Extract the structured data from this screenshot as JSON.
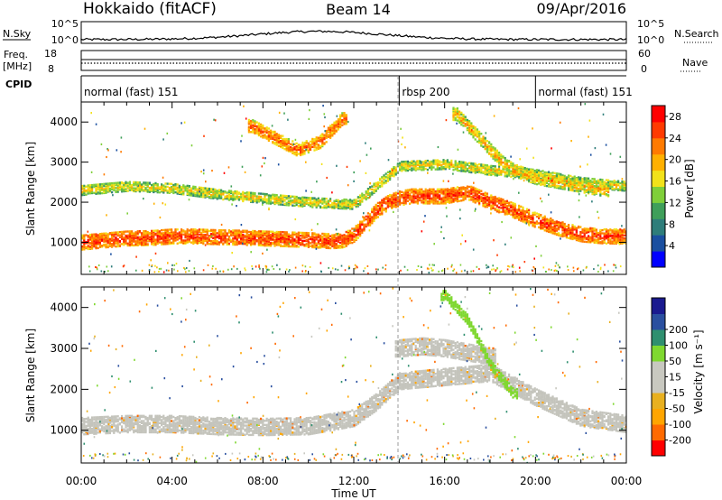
{
  "header": {
    "station": "Hokkaido (fitACF)",
    "beam": "Beam 14",
    "date": "09/Apr/2016"
  },
  "top_strip": {
    "nsky_label": "N.Sky",
    "nsearch_label": "N.Search",
    "left_ticks": [
      "10^5",
      "10^0"
    ],
    "right_ticks": [
      "10^5",
      "10^0"
    ],
    "freq_label": "Freq.",
    "freq_unit": "[MHz]",
    "freq_ticks": [
      "18",
      "8"
    ],
    "nave_label": "Nave",
    "nave_ticks": [
      "60",
      "0"
    ],
    "cpid_label": "CPID"
  },
  "cpid_segments": [
    {
      "label": "normal (fast) 151",
      "start": 0,
      "end": 14
    },
    {
      "label": "rbsp 200",
      "start": 14,
      "end": 20
    },
    {
      "label": "normal (fast) 151",
      "start": 20,
      "end": 24
    }
  ],
  "colors": {
    "power_scale": [
      "#0000ff",
      "#1a4fa0",
      "#2e7d7a",
      "#3f9f5a",
      "#7fcf3a",
      "#f2e21a",
      "#ffb000",
      "#ff7a00",
      "#ff3a00",
      "#ff0000"
    ],
    "velocity_scale": [
      "#ff0000",
      "#ff6a00",
      "#ffa500",
      "#e8b020",
      "#c8c8c0",
      "#c8c8c0",
      "#7fd830",
      "#2f8f6f",
      "#2a4f9f",
      "#1a1a8f"
    ],
    "ground_scatter": "#c4c4bc"
  },
  "chart_data": [
    {
      "type": "heatmap",
      "name": "power_panel",
      "title": "",
      "xlabel": "Time UT",
      "ylabel": "Slant Range [km]",
      "x_range_hours": [
        0,
        24
      ],
      "ylim": [
        200,
        4500
      ],
      "y_ticks": [
        1000,
        2000,
        3000,
        4000
      ],
      "x_ticks": [
        "00:00",
        "04:00",
        "08:00",
        "12:00",
        "16:00",
        "20:00",
        "00:00"
      ],
      "colorbar": {
        "label": "Power [dB]",
        "ticks": [
          4,
          8,
          12,
          16,
          20,
          24,
          28
        ],
        "range": [
          0,
          30
        ]
      },
      "bands": [
        {
          "t": [
            0,
            1,
            2,
            3,
            4,
            5,
            6,
            7,
            8,
            9,
            10,
            11,
            11.5,
            12,
            12.5,
            13,
            13.5,
            14,
            14.5,
            15,
            16,
            17,
            18,
            19,
            20,
            21,
            22,
            23,
            24
          ],
          "center_km": [
            1000,
            1050,
            1100,
            1110,
            1150,
            1150,
            1130,
            1120,
            1100,
            1080,
            1060,
            1030,
            1050,
            1200,
            1500,
            1800,
            2000,
            2100,
            2150,
            2150,
            2150,
            2250,
            2000,
            1800,
            1550,
            1350,
            1200,
            1150,
            1150
          ],
          "half_width_km": 180,
          "power_db": 24
        },
        {
          "t": [
            0,
            2,
            4,
            6,
            8,
            10,
            12,
            14,
            16,
            18,
            20,
            22,
            24
          ],
          "center_km": [
            2300,
            2400,
            2350,
            2200,
            2100,
            2000,
            1950,
            2900,
            2950,
            2800,
            2700,
            2500,
            2400
          ],
          "half_width_km": 120,
          "power_db": 16
        },
        {
          "t": [
            7.5,
            8.5,
            9.5,
            10.5,
            11.5
          ],
          "center_km": [
            3900,
            3600,
            3300,
            3500,
            4100
          ],
          "half_width_km": 150,
          "power_db": 22
        },
        {
          "t": [
            16.5,
            17,
            17.5,
            18,
            18.5,
            19,
            20,
            21,
            22,
            23
          ],
          "center_km": [
            4200,
            3900,
            3600,
            3300,
            3000,
            2800,
            2600,
            2500,
            2400,
            2300
          ],
          "half_width_km": 150,
          "power_db": 18
        }
      ]
    },
    {
      "type": "heatmap",
      "name": "velocity_panel",
      "title": "",
      "xlabel": "Time UT",
      "ylabel": "Slant Range [km]",
      "x_range_hours": [
        0,
        24
      ],
      "ylim": [
        200,
        4500
      ],
      "y_ticks": [
        1000,
        2000,
        3000,
        4000
      ],
      "x_ticks": [
        "00:00",
        "04:00",
        "08:00",
        "12:00",
        "16:00",
        "20:00",
        "00:00"
      ],
      "colorbar": {
        "label": "Velocity [m s⁻¹]",
        "ticks": [
          -200,
          -100,
          -50,
          -15,
          15,
          50,
          100,
          200
        ]
      },
      "bands": [
        {
          "t": [
            0,
            2,
            4,
            6,
            8,
            10,
            12,
            13,
            14,
            16,
            18,
            20,
            22,
            24
          ],
          "center_km": [
            1100,
            1150,
            1150,
            1100,
            1080,
            1100,
            1300,
            1700,
            2200,
            2300,
            2400,
            1800,
            1300,
            1150
          ],
          "half_width_km": 200,
          "velocity": 0
        },
        {
          "t": [
            14,
            15,
            16,
            17,
            18
          ],
          "center_km": [
            3000,
            3050,
            3000,
            2900,
            2800
          ],
          "half_width_km": 200,
          "velocity": 0
        },
        {
          "t": [
            16,
            17,
            18,
            19
          ],
          "center_km": [
            4300,
            3700,
            2600,
            1900
          ],
          "half_width_km": 120,
          "velocity": 30
        }
      ]
    }
  ]
}
